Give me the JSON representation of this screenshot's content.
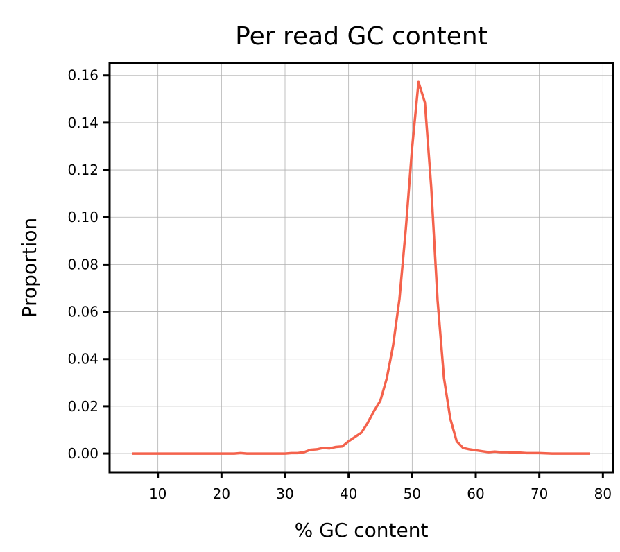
{
  "chart_data": {
    "type": "line",
    "title": "Per read GC content",
    "xlabel": "% GC content",
    "ylabel": "Proportion",
    "xlim": [
      2.4,
      81.6
    ],
    "ylim": [
      -0.0079,
      0.1652
    ],
    "xticks": [
      10,
      20,
      30,
      40,
      50,
      60,
      70,
      80
    ],
    "xtick_labels": [
      "10",
      "20",
      "30",
      "40",
      "50",
      "60",
      "70",
      "80"
    ],
    "yticks": [
      0.0,
      0.02,
      0.04,
      0.06,
      0.08,
      0.1,
      0.12,
      0.14,
      0.16
    ],
    "ytick_labels": [
      "0.00",
      "0.02",
      "0.04",
      "0.06",
      "0.08",
      "0.10",
      "0.12",
      "0.14",
      "0.16"
    ],
    "grid": true,
    "line_color": "#f4624c",
    "series": [
      {
        "x": [
          6,
          8,
          10,
          12,
          14,
          16,
          18,
          20,
          22,
          23,
          24,
          26,
          28,
          30,
          31,
          32,
          33,
          34,
          35,
          36,
          37,
          38,
          39,
          40,
          41,
          42,
          43,
          44,
          45,
          46,
          47,
          48,
          49,
          50,
          51,
          52,
          53,
          54,
          55,
          56,
          57,
          58,
          59,
          60,
          61,
          62,
          63,
          64,
          65,
          66,
          67,
          68,
          70,
          72,
          74,
          76,
          78
        ],
        "y": [
          0.0,
          0.0,
          0.0,
          0.0,
          0.0,
          0.0,
          0.0,
          0.0,
          0.0,
          0.0002,
          0.0,
          0.0,
          0.0,
          0.0,
          0.0002,
          0.0002,
          0.0006,
          0.0016,
          0.0018,
          0.0024,
          0.0022,
          0.0028,
          0.003,
          0.0052,
          0.007,
          0.0088,
          0.013,
          0.018,
          0.0224,
          0.0318,
          0.0456,
          0.0654,
          0.0952,
          0.1295,
          0.1572,
          0.1485,
          0.1127,
          0.0647,
          0.0319,
          0.0148,
          0.0052,
          0.0024,
          0.0018,
          0.0014,
          0.001,
          0.0006,
          0.0008,
          0.0006,
          0.0006,
          0.0004,
          0.0004,
          0.0002,
          0.0002,
          0.0,
          0.0,
          0.0,
          0.0
        ]
      }
    ]
  }
}
